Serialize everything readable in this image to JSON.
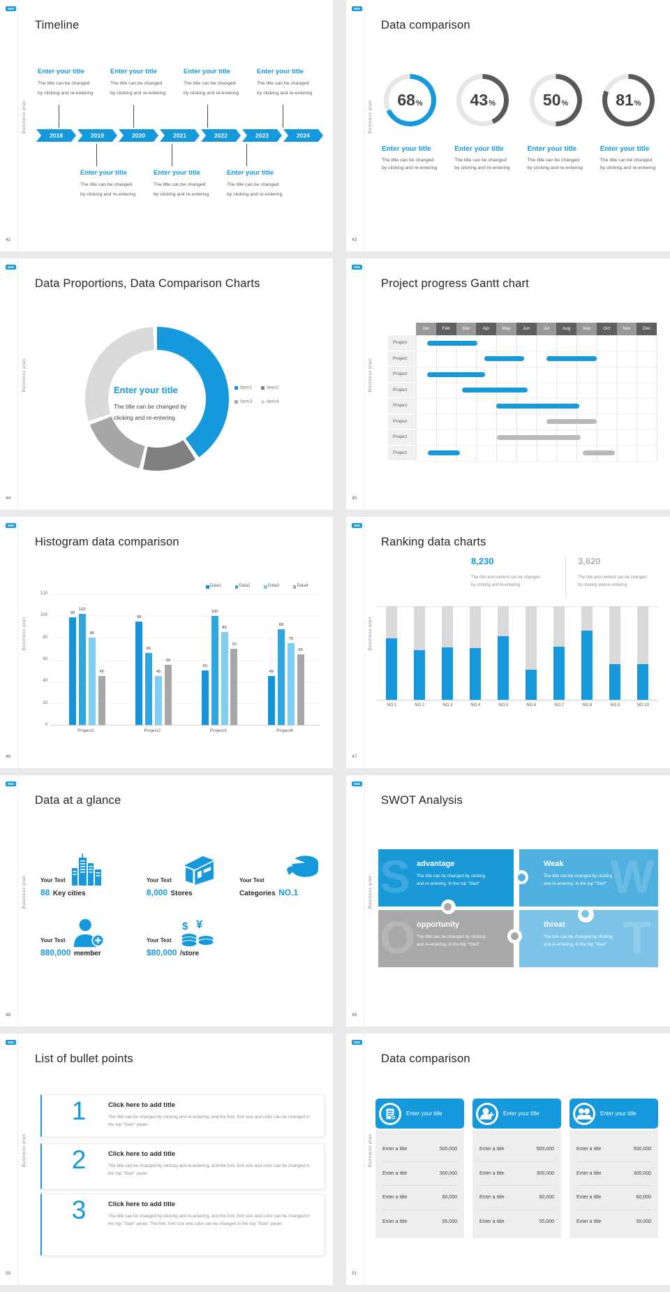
{
  "chrome": {
    "sidebar_text": "Business plan"
  },
  "theme": {
    "blue": "#1598dc",
    "dark_gray": "#595959",
    "mid_gray": "#a6a6a6",
    "light_gray": "#d9d9d9",
    "track": "#e6e6e6"
  },
  "slides": {
    "timeline": {
      "page": "42",
      "title": "Timeline",
      "entry_title": "Enter your title",
      "entry_desc1": "The title can be changed",
      "entry_desc2": "by clicking and re-entering",
      "years": [
        "2018",
        "2019",
        "2020",
        "2021",
        "2022",
        "2023",
        "2024"
      ]
    },
    "rings": {
      "page": "43",
      "title": "Data comparison",
      "entry_title": "Enter your title",
      "entry_desc1": "The title can be changed",
      "entry_desc2": "by clicking and re-entering",
      "percent_sign": "%"
    },
    "proportions": {
      "page": "44",
      "title": "Data Proportions, Data Comparison Charts",
      "center_title": "Enter your title",
      "center_desc1": "The title can be changed by",
      "center_desc2": "clicking and re-entering"
    },
    "gantt": {
      "page": "45",
      "title": "Project progress Gantt chart"
    },
    "histogram": {
      "page": "46",
      "title": "Histogram data comparison"
    },
    "ranking": {
      "page": "47",
      "title": "Ranking data charts",
      "stat_primary": {
        "value": "8,230",
        "desc1": "The title and content can be changed",
        "desc2": "by clicking and re-entering"
      },
      "stat_secondary": {
        "value": "3,620",
        "desc1": "The title and content can be changed",
        "desc2": "by clicking and re-entering"
      }
    },
    "glance": {
      "page": "48",
      "title": "Data at a glance",
      "label": "Your Text",
      "items": [
        {
          "icon": "city-buildings-icon",
          "number": "88",
          "text": "Key cities"
        },
        {
          "icon": "store-icon",
          "number": "8,000",
          "text": "Stores"
        },
        {
          "icon": "pie-3d-icon",
          "text": "Categories",
          "number": "NO.1"
        },
        {
          "icon": "add-member-icon",
          "number": "880,000",
          "text": "member"
        },
        {
          "icon": "coins-icon",
          "number": "$80,000",
          "text": "/store"
        }
      ]
    },
    "swot": {
      "page": "49",
      "title": "SWOT Analysis",
      "quads": [
        {
          "letter": "S",
          "title": "advantage",
          "desc1": "The title can be changed by clicking",
          "desc2": "and re-entering. In the top \"Start\"",
          "color": "#1b98d8"
        },
        {
          "letter": "W",
          "title": "Weak",
          "desc1": "The title can be changed by clicking",
          "desc2": "and re-entering. In the top \"Start\"",
          "color": "#4fb0e0"
        },
        {
          "letter": "O",
          "title": "opportunity",
          "desc1": "The title can be changed by clicking",
          "desc2": "and re-entering. In the top \"Start\"",
          "color": "#a8a8a8"
        },
        {
          "letter": "T",
          "title": "threat",
          "desc1": "The title can be changed by clicking",
          "desc2": "and re-entering. In the top \"Start\"",
          "color": "#7dc3e7"
        }
      ]
    },
    "bullets": {
      "page": "50",
      "title": "List of bullet points",
      "items": [
        {
          "num": "1",
          "title": "Click here to add title",
          "desc": "The title can be changed by clicking and re-entering, and the font, font size and color can be changed in the top \"Start\" panel"
        },
        {
          "num": "2",
          "title": "Click here to add title",
          "desc": "The title can be changed by clicking and re-entering, and the font, font size and color can be changed in the top \"Start\" panel"
        },
        {
          "num": "3",
          "title": "Click here to add title",
          "desc": "The title can be changed by clicking and re-entering, and the font, font size and color can be changed in the top \"Start\" panel. The font, font size and color can be changed in the top \"Start\" panel."
        }
      ]
    },
    "tables": {
      "page": "51",
      "title": "Data comparison",
      "card_header": "Enter your title",
      "row_label": "Enter a title",
      "cards": [
        {
          "icon": "id-card-icon",
          "values": [
            "500,000",
            "300,000",
            "60,000",
            "55,000"
          ]
        },
        {
          "icon": "add-member-icon",
          "values": [
            "500,000",
            "300,000",
            "60,000",
            "55,000"
          ]
        },
        {
          "icon": "team-icon",
          "values": [
            "500,000",
            "300,000",
            "60,000",
            "55,000"
          ]
        }
      ]
    }
  },
  "chart_data": [
    {
      "name": "comparison_rings",
      "type": "pie",
      "subtype": "donut-gauges",
      "unit": "%",
      "values": [
        68,
        43,
        50,
        81
      ],
      "colors": [
        "#1598dc",
        "#595959",
        "#595959",
        "#595959"
      ],
      "track_color": "#e6e6e6"
    },
    {
      "name": "proportions_donut",
      "type": "pie",
      "subtype": "donut",
      "labels": [
        "Item1",
        "Item2",
        "Item3",
        "Item4"
      ],
      "values": [
        41,
        13,
        16,
        30
      ],
      "colors": [
        "#1598dc",
        "#7f7f7f",
        "#a6a6a6",
        "#d9d9d9"
      ],
      "legend_position": "right",
      "center_title": "Enter your title"
    },
    {
      "name": "gantt",
      "type": "table",
      "subtype": "gantt",
      "row_label": "Project",
      "months": [
        "Jan",
        "Feb",
        "Mar",
        "Apr",
        "May",
        "Jun",
        "Jul",
        "Aug",
        "Sep",
        "Oct",
        "Nov",
        "Dec"
      ],
      "rows": [
        {
          "bars": [
            {
              "start": 0.55,
              "end": 3.05,
              "color": "blue"
            }
          ]
        },
        {
          "bars": [
            {
              "start": 3.4,
              "end": 5.4,
              "color": "blue"
            },
            {
              "start": 6.5,
              "end": 9.0,
              "color": "blue"
            }
          ]
        },
        {
          "bars": [
            {
              "start": 0.55,
              "end": 3.45,
              "color": "blue"
            }
          ]
        },
        {
          "bars": [
            {
              "start": 2.3,
              "end": 5.55,
              "color": "blue"
            }
          ]
        },
        {
          "bars": [
            {
              "start": 4.0,
              "end": 8.15,
              "color": "blue"
            }
          ]
        },
        {
          "bars": [
            {
              "start": 6.5,
              "end": 9.0,
              "color": "gray"
            }
          ]
        },
        {
          "bars": [
            {
              "start": 4.05,
              "end": 8.2,
              "color": "gray"
            }
          ]
        },
        {
          "bars": [
            {
              "start": 0.6,
              "end": 2.2,
              "color": "blue"
            },
            {
              "start": 8.3,
              "end": 9.9,
              "color": "gray"
            }
          ]
        }
      ]
    },
    {
      "name": "histogram",
      "type": "bar",
      "title": "Histogram data comparison",
      "categories": [
        "Project1",
        "Project2",
        "Project3",
        "Project4"
      ],
      "series": [
        {
          "name": "Data1",
          "color": "#1593d8",
          "values": [
            99,
            95,
            50,
            45
          ]
        },
        {
          "name": "Data2",
          "color": "#2fa8e1",
          "values": [
            102,
            66,
            100,
            88
          ]
        },
        {
          "name": "Data3",
          "color": "#7fcdf1",
          "values": [
            80,
            45,
            85,
            75
          ]
        },
        {
          "name": "Data4",
          "color": "#a6a6a6",
          "values": [
            45,
            55,
            70,
            65
          ]
        }
      ],
      "ylim": [
        0,
        120
      ],
      "ytick": 20,
      "grid": true,
      "legend_position": "top-right"
    },
    {
      "name": "ranking",
      "type": "bar",
      "subtype": "fill-gauge-columns",
      "categories": [
        "NO.1",
        "NO.2",
        "NO.3",
        "NO.4",
        "NO.5",
        "NO.6",
        "NO.7",
        "NO.8",
        "NO.9",
        "NO.10"
      ],
      "values_percent": [
        66,
        53,
        56,
        55,
        68,
        32,
        57,
        74,
        38,
        38
      ],
      "bar_color": "#1598dc",
      "track_color": "#d9d9d9",
      "callouts": [
        "8,230",
        "3,620"
      ]
    }
  ]
}
